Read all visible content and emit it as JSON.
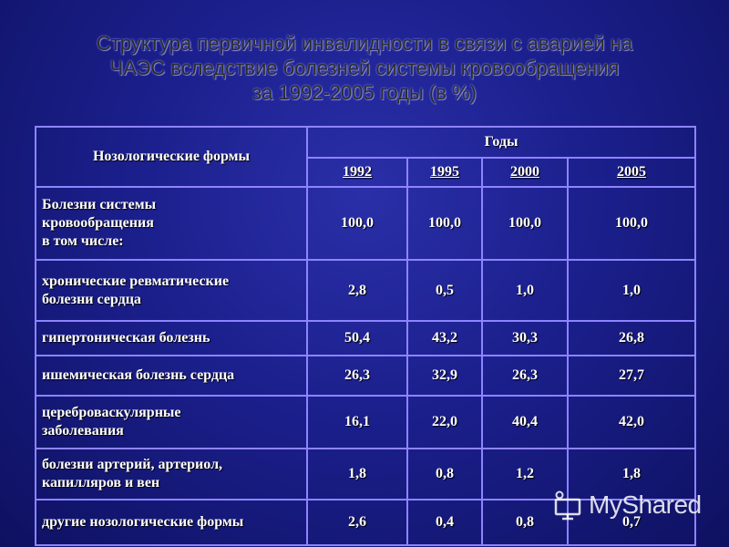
{
  "title": {
    "line1": "Структура первичной инвалидности в связи с аварией на",
    "line2": "ЧАЭС вследствие болезней системы кровообращения",
    "line3": "за 1992-2005 годы (в %)"
  },
  "table": {
    "header_forms": "Нозологические формы",
    "header_years": "Годы",
    "years": [
      "1992",
      "1995",
      "2000",
      "2005"
    ],
    "rows": [
      {
        "label": [
          "Болезни системы",
          "кровообращения",
          "в том числе:"
        ],
        "values": [
          "100,0",
          "100,0",
          "100,0",
          "100,0"
        ]
      },
      {
        "label": [
          "хронические ревматические",
          "болезни сердца"
        ],
        "values": [
          "2,8",
          "0,5",
          "1,0",
          "1,0"
        ]
      },
      {
        "label": [
          "гипертоническая болезнь"
        ],
        "values": [
          "50,4",
          "43,2",
          "30,3",
          "26,8"
        ]
      },
      {
        "label": [
          "ишемическая болезнь сердца"
        ],
        "values": [
          "26,3",
          "32,9",
          "26,3",
          "27,7"
        ]
      },
      {
        "label": [
          "цереброваскулярные",
          "заболевания"
        ],
        "values": [
          "16,1",
          "22,0",
          "40,4",
          "42,0"
        ]
      },
      {
        "label": [
          "болезни артерий, артериол,",
          "капилляров и вен"
        ],
        "values": [
          "1,8",
          "0,8",
          "1,2",
          "1,8"
        ]
      },
      {
        "label": [
          "другие нозологические формы"
        ],
        "values": [
          "2,6",
          "0,4",
          "0,8",
          "0,7"
        ]
      }
    ]
  },
  "watermark": {
    "text": "MyShared",
    "icon": "presentation-screen-icon"
  }
}
